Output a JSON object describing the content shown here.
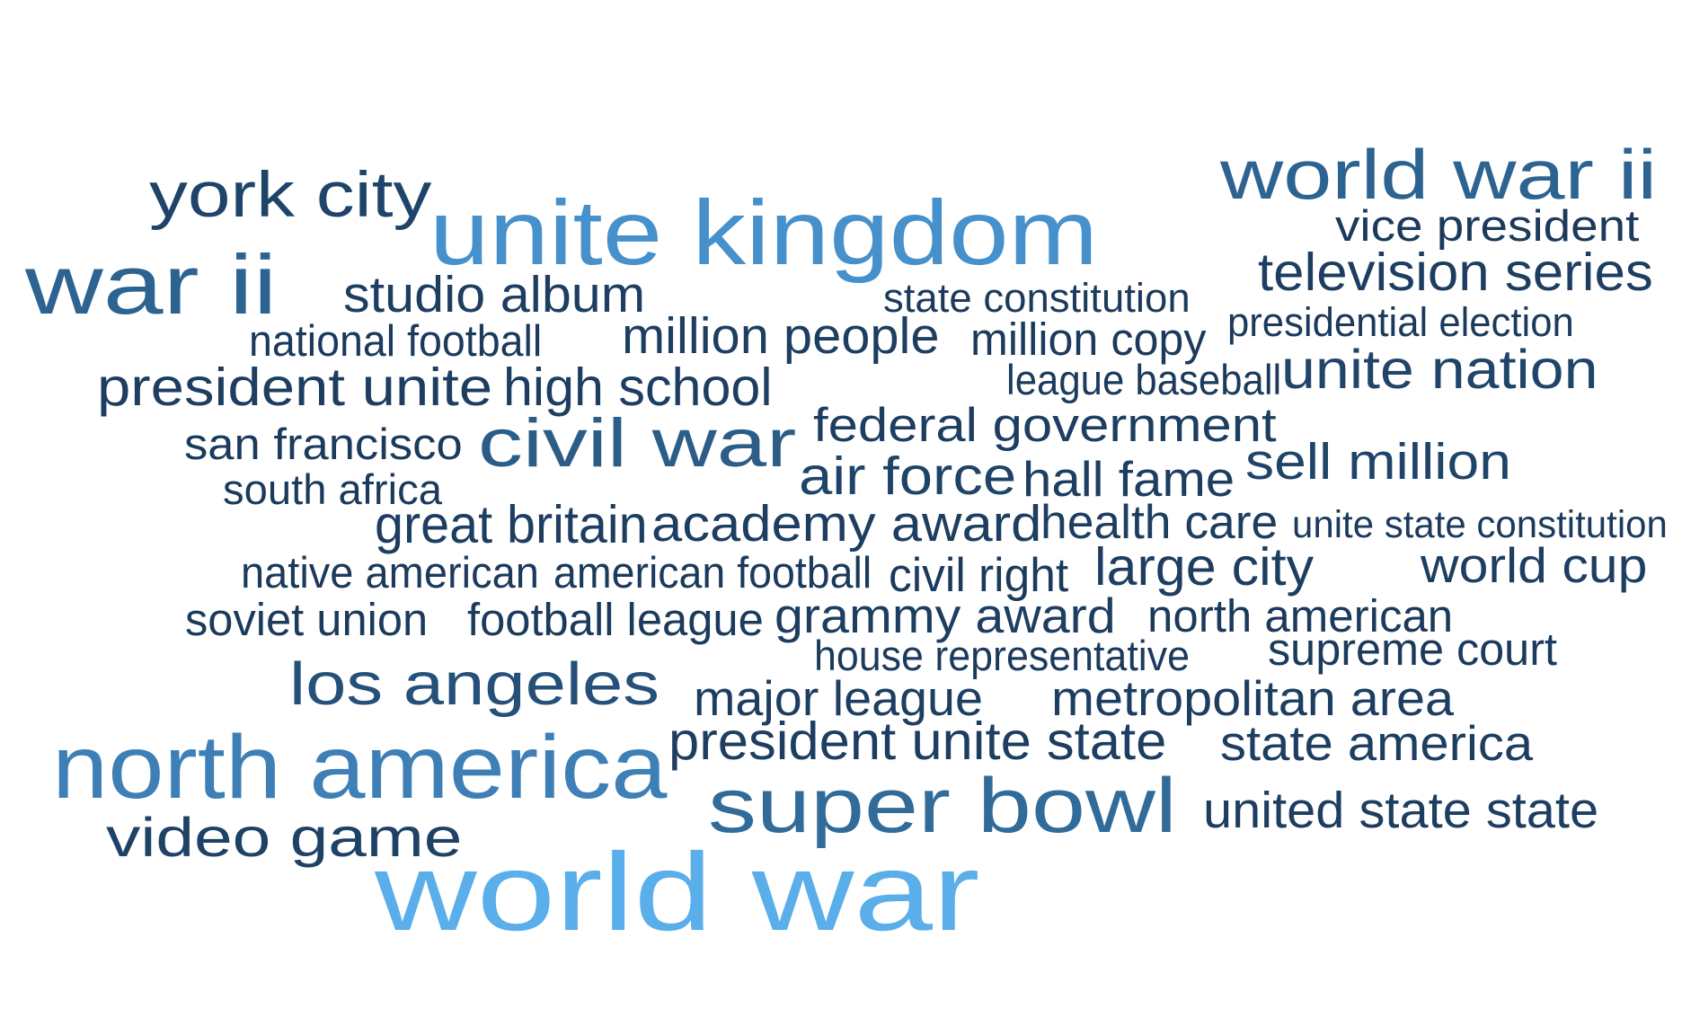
{
  "words": [
    {
      "text": "world war",
      "color": "#5aaeea"
    },
    {
      "text": "unite kingdom",
      "color": "#4690cb"
    },
    {
      "text": "north america",
      "color": "#3e7fb6"
    },
    {
      "text": "super bowl",
      "color": "#316b99"
    },
    {
      "text": "world war ii",
      "color": "#2c6391"
    },
    {
      "text": "war ii",
      "color": "#2c6391"
    },
    {
      "text": "civil war",
      "color": "#2b5d87"
    },
    {
      "text": "los angeles",
      "color": "#24507a"
    },
    {
      "text": "york city",
      "color": "#1f4469"
    },
    {
      "text": "video game",
      "color": "#1e4266"
    },
    {
      "text": "unite nation",
      "color": "#204569"
    },
    {
      "text": "studio album",
      "color": "#1d3e61"
    },
    {
      "text": "president unite",
      "color": "#1d3e61"
    },
    {
      "text": "high school",
      "color": "#1d3e61"
    },
    {
      "text": "million people",
      "color": "#1d3e61"
    },
    {
      "text": "television series",
      "color": "#1d3e61"
    },
    {
      "text": "federal government",
      "color": "#1d3e61"
    },
    {
      "text": "air force",
      "color": "#1f4469"
    },
    {
      "text": "hall fame",
      "color": "#1d3e61"
    },
    {
      "text": "sell million",
      "color": "#1f4469"
    },
    {
      "text": "great britain",
      "color": "#1d3e61"
    },
    {
      "text": "academy award",
      "color": "#1d3e61"
    },
    {
      "text": "health care",
      "color": "#1d3e61"
    },
    {
      "text": "large city",
      "color": "#1d3e61"
    },
    {
      "text": "world cup",
      "color": "#1d3e61"
    },
    {
      "text": "grammy award",
      "color": "#1d3e61"
    },
    {
      "text": "metropolitan area",
      "color": "#1d3e61"
    },
    {
      "text": "major league",
      "color": "#1d3e61"
    },
    {
      "text": "president unite state",
      "color": "#1d3e61"
    },
    {
      "text": "state america",
      "color": "#1d3e61"
    },
    {
      "text": "united state state",
      "color": "#1d3e61"
    },
    {
      "text": "vice president",
      "color": "#1b3a5c"
    },
    {
      "text": "million copy",
      "color": "#1b3a5c"
    },
    {
      "text": "state constitution",
      "color": "#1b3a5c"
    },
    {
      "text": "national football",
      "color": "#1b3a5c"
    },
    {
      "text": "presidential election",
      "color": "#1b3a5c"
    },
    {
      "text": "league baseball",
      "color": "#1b3a5c"
    },
    {
      "text": "san francisco",
      "color": "#1b3a5c"
    },
    {
      "text": "south africa",
      "color": "#1b3a5c"
    },
    {
      "text": "unite state constitution",
      "color": "#1b3a5c"
    },
    {
      "text": "native american",
      "color": "#1b3a5c"
    },
    {
      "text": "american football",
      "color": "#1b3a5c"
    },
    {
      "text": "civil right",
      "color": "#1b3a5c"
    },
    {
      "text": "soviet union",
      "color": "#1b3a5c"
    },
    {
      "text": "football league",
      "color": "#1b3a5c"
    },
    {
      "text": "north american",
      "color": "#1b3a5c"
    },
    {
      "text": "house representative",
      "color": "#1b3a5c"
    },
    {
      "text": "supreme court",
      "color": "#1b3a5c"
    }
  ]
}
